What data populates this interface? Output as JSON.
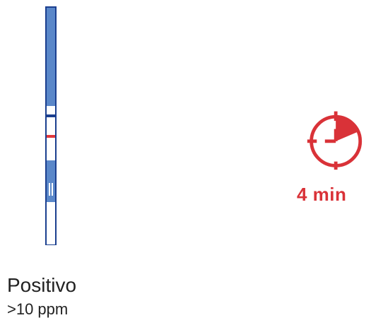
{
  "test_strip": {
    "result": "Positivo",
    "control_line_color": "#1b3f8f",
    "test_line_color": "#e0383e",
    "strip_color": "#5a87c9"
  },
  "timer": {
    "icon": "stopwatch-icon",
    "label": "4 min",
    "color": "#d93238"
  },
  "result": {
    "title": "Positivo",
    "threshold": ">10 ppm"
  }
}
